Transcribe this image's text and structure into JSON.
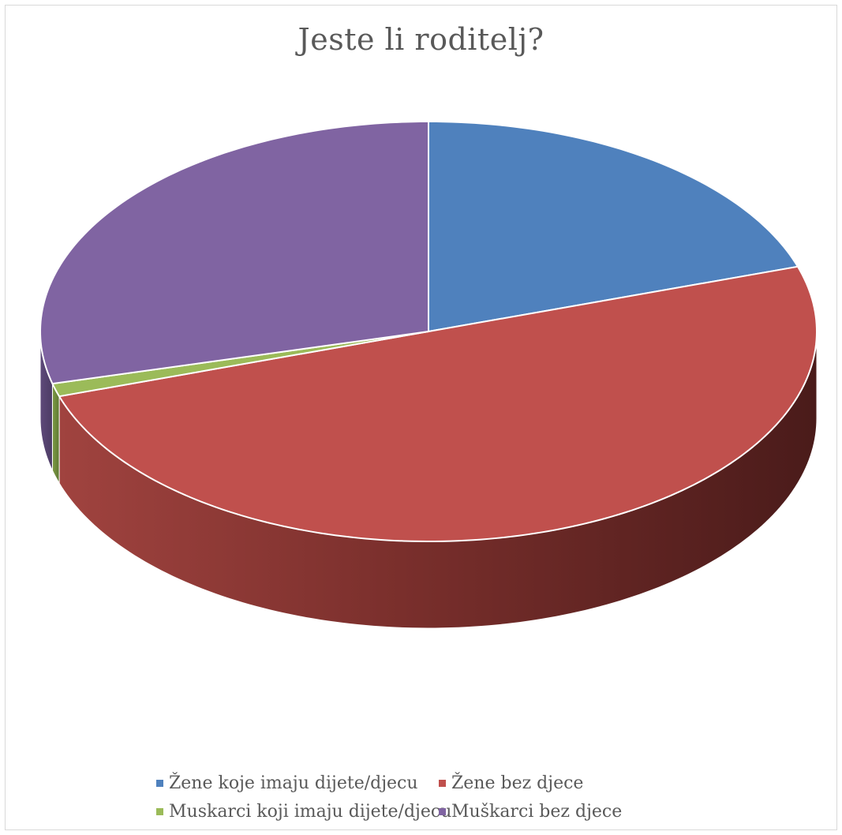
{
  "chart_data": {
    "type": "pie",
    "title": "Jeste li roditelj?",
    "categories": [
      "Žene koje imaju dijete/djecu",
      "Žene bez djece",
      "Muskarci koji imaju dijete/djecu",
      "Muškarci bez djece"
    ],
    "values": [
      20,
      50,
      1,
      29
    ],
    "colors": [
      "#4f81bd",
      "#c0504d",
      "#9bbb59",
      "#8064a2"
    ],
    "legend_position": "bottom",
    "style": "3d"
  }
}
